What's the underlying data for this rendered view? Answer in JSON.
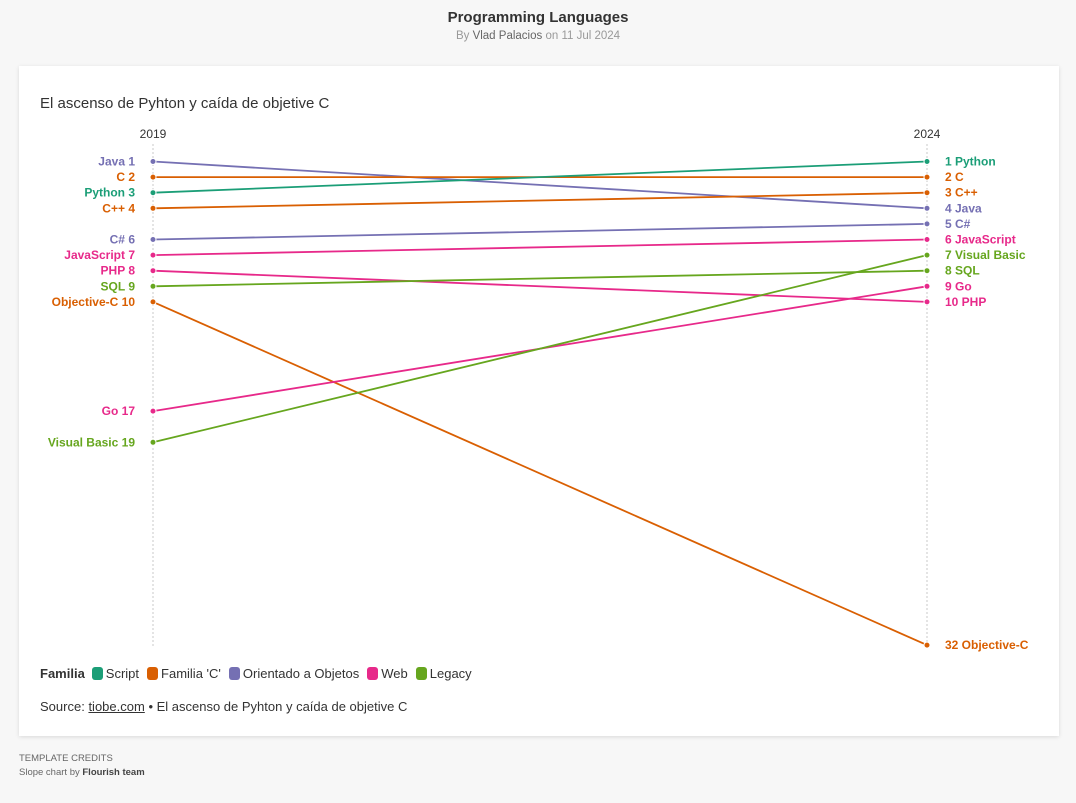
{
  "page": {
    "title": "Programming Languages",
    "byline_prefix": "By",
    "author": "Vlad Palacios",
    "byline_date": "on 11 Jul 2024"
  },
  "chart_data": {
    "type": "slope",
    "title": "El ascenso de Pyhton y caída de objetive C",
    "columns": [
      "2019",
      "2024"
    ],
    "rank_range": [
      1,
      32
    ],
    "series": [
      {
        "name": "Java",
        "family": "Orientado a Objetos",
        "values": [
          1,
          4
        ],
        "left_label": "Java 1",
        "right_label": "4 Java"
      },
      {
        "name": "C",
        "family": "Familia 'C'",
        "values": [
          2,
          2
        ],
        "left_label": "C 2",
        "right_label": "2 C"
      },
      {
        "name": "Python",
        "family": "Script",
        "values": [
          3,
          1
        ],
        "left_label": "Python 3",
        "right_label": "1 Python"
      },
      {
        "name": "C++",
        "family": "Familia 'C'",
        "values": [
          4,
          3
        ],
        "left_label": "C++ 4",
        "right_label": "3 C++"
      },
      {
        "name": "C#",
        "family": "Orientado a Objetos",
        "values": [
          6,
          5
        ],
        "left_label": "C# 6",
        "right_label": "5 C#"
      },
      {
        "name": "JavaScript",
        "family": "Web",
        "values": [
          7,
          6
        ],
        "left_label": "JavaScript 7",
        "right_label": "6 JavaScript"
      },
      {
        "name": "PHP",
        "family": "Web",
        "values": [
          8,
          10
        ],
        "left_label": "PHP 8",
        "right_label": "10 PHP"
      },
      {
        "name": "SQL",
        "family": "Legacy",
        "values": [
          9,
          8
        ],
        "left_label": "SQL 9",
        "right_label": "8 SQL"
      },
      {
        "name": "Objective-C",
        "family": "Familia 'C'",
        "values": [
          10,
          32
        ],
        "left_label": "Objective-C 10",
        "right_label": "32 Objective-C"
      },
      {
        "name": "Go",
        "family": "Web",
        "values": [
          17,
          9
        ],
        "left_label": "Go 17",
        "right_label": "9 Go"
      },
      {
        "name": "Visual Basic",
        "family": "Legacy",
        "values": [
          19,
          7
        ],
        "left_label": "Visual Basic 19",
        "right_label": "7 Visual Basic"
      }
    ],
    "legend": {
      "title": "Familia",
      "position": "bottom-left",
      "items": [
        {
          "label": "Script",
          "color": "#1b9e77"
        },
        {
          "label": "Familia 'C'",
          "color": "#d95f02"
        },
        {
          "label": "Orientado a Objetos",
          "color": "#7570b3"
        },
        {
          "label": "Web",
          "color": "#e7298a"
        },
        {
          "label": "Legacy",
          "color": "#66a61e"
        }
      ]
    }
  },
  "source": {
    "prefix": "Source:",
    "link": "tiobe.com",
    "suffix": "• El ascenso de Pyhton y caída de objetive C"
  },
  "credits": {
    "line1": "TEMPLATE CREDITS",
    "prefix": "Slope chart by",
    "team": "Flourish team"
  }
}
